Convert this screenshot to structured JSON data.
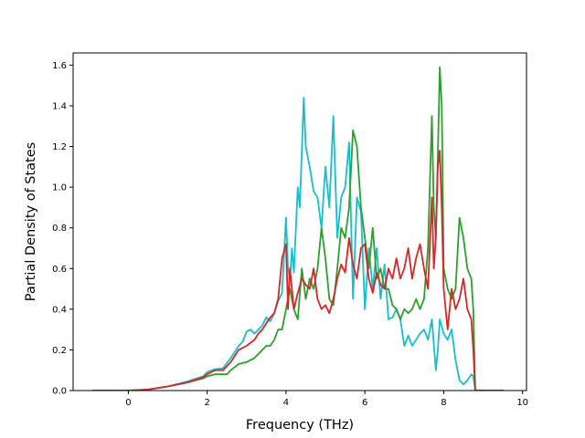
{
  "chart_data": {
    "type": "line",
    "title": "",
    "xlabel": "Frequency (THz)",
    "ylabel": "Partial Density of States",
    "xlim": [
      -1.4,
      10.1
    ],
    "ylim": [
      0.0,
      1.66
    ],
    "xticks": [
      0,
      2,
      4,
      6,
      8,
      10
    ],
    "yticks": [
      0.0,
      0.2,
      0.4,
      0.6,
      0.8,
      1.0,
      1.2,
      1.4,
      1.6
    ],
    "xtick_labels": [
      "0",
      "2",
      "4",
      "6",
      "8",
      "10"
    ],
    "ytick_labels": [
      "0.0",
      "0.2",
      "0.4",
      "0.6",
      "0.8",
      "1.0",
      "1.2",
      "1.4",
      "1.6"
    ],
    "grid": false,
    "legend": "none",
    "series": [
      {
        "color": "#17becf",
        "points": [
          [
            -0.9,
            0.0
          ],
          [
            0.0,
            0.0
          ],
          [
            0.5,
            0.005
          ],
          [
            1.0,
            0.02
          ],
          [
            1.5,
            0.045
          ],
          [
            1.9,
            0.07
          ],
          [
            2.0,
            0.09
          ],
          [
            2.2,
            0.105
          ],
          [
            2.4,
            0.11
          ],
          [
            2.6,
            0.16
          ],
          [
            2.8,
            0.22
          ],
          [
            2.9,
            0.24
          ],
          [
            3.0,
            0.29
          ],
          [
            3.1,
            0.3
          ],
          [
            3.2,
            0.28
          ],
          [
            3.3,
            0.3
          ],
          [
            3.4,
            0.32
          ],
          [
            3.5,
            0.36
          ],
          [
            3.6,
            0.34
          ],
          [
            3.7,
            0.38
          ],
          [
            3.8,
            0.44
          ],
          [
            3.9,
            0.48
          ],
          [
            4.0,
            0.85
          ],
          [
            4.05,
            0.6
          ],
          [
            4.1,
            0.55
          ],
          [
            4.15,
            0.7
          ],
          [
            4.2,
            0.58
          ],
          [
            4.3,
            1.0
          ],
          [
            4.35,
            0.9
          ],
          [
            4.45,
            1.44
          ],
          [
            4.5,
            1.2
          ],
          [
            4.6,
            1.1
          ],
          [
            4.7,
            0.98
          ],
          [
            4.8,
            0.95
          ],
          [
            4.9,
            0.8
          ],
          [
            5.0,
            1.1
          ],
          [
            5.1,
            0.9
          ],
          [
            5.2,
            1.35
          ],
          [
            5.3,
            0.75
          ],
          [
            5.4,
            0.95
          ],
          [
            5.5,
            1.0
          ],
          [
            5.6,
            1.22
          ],
          [
            5.7,
            0.45
          ],
          [
            5.8,
            0.95
          ],
          [
            5.9,
            0.88
          ],
          [
            6.0,
            0.4
          ],
          [
            6.1,
            0.7
          ],
          [
            6.2,
            0.5
          ],
          [
            6.3,
            0.7
          ],
          [
            6.4,
            0.45
          ],
          [
            6.5,
            0.62
          ],
          [
            6.6,
            0.35
          ],
          [
            6.7,
            0.36
          ],
          [
            6.8,
            0.4
          ],
          [
            6.9,
            0.35
          ],
          [
            7.0,
            0.22
          ],
          [
            7.1,
            0.27
          ],
          [
            7.2,
            0.22
          ],
          [
            7.3,
            0.25
          ],
          [
            7.4,
            0.28
          ],
          [
            7.5,
            0.3
          ],
          [
            7.6,
            0.25
          ],
          [
            7.7,
            0.35
          ],
          [
            7.8,
            0.1
          ],
          [
            7.85,
            0.2
          ],
          [
            7.9,
            0.35
          ],
          [
            8.0,
            0.28
          ],
          [
            8.1,
            0.25
          ],
          [
            8.2,
            0.3
          ],
          [
            8.3,
            0.15
          ],
          [
            8.4,
            0.05
          ],
          [
            8.5,
            0.03
          ],
          [
            8.6,
            0.05
          ],
          [
            8.7,
            0.08
          ],
          [
            8.75,
            0.07
          ],
          [
            8.8,
            0.0
          ],
          [
            9.5,
            0.0
          ]
        ]
      },
      {
        "color": "#2ca02c",
        "points": [
          [
            -0.9,
            0.0
          ],
          [
            0.0,
            0.0
          ],
          [
            0.5,
            0.005
          ],
          [
            1.0,
            0.02
          ],
          [
            1.5,
            0.04
          ],
          [
            1.9,
            0.06
          ],
          [
            2.0,
            0.07
          ],
          [
            2.2,
            0.08
          ],
          [
            2.5,
            0.08
          ],
          [
            2.6,
            0.1
          ],
          [
            2.8,
            0.13
          ],
          [
            3.0,
            0.14
          ],
          [
            3.2,
            0.16
          ],
          [
            3.4,
            0.2
          ],
          [
            3.5,
            0.22
          ],
          [
            3.6,
            0.22
          ],
          [
            3.7,
            0.25
          ],
          [
            3.8,
            0.3
          ],
          [
            3.9,
            0.3
          ],
          [
            4.0,
            0.4
          ],
          [
            4.1,
            0.5
          ],
          [
            4.2,
            0.4
          ],
          [
            4.3,
            0.35
          ],
          [
            4.4,
            0.6
          ],
          [
            4.5,
            0.45
          ],
          [
            4.6,
            0.55
          ],
          [
            4.7,
            0.5
          ],
          [
            4.8,
            0.6
          ],
          [
            4.9,
            0.8
          ],
          [
            5.0,
            0.65
          ],
          [
            5.1,
            0.45
          ],
          [
            5.2,
            0.42
          ],
          [
            5.3,
            0.6
          ],
          [
            5.4,
            0.8
          ],
          [
            5.5,
            0.75
          ],
          [
            5.6,
            0.9
          ],
          [
            5.7,
            1.28
          ],
          [
            5.8,
            1.2
          ],
          [
            5.9,
            0.9
          ],
          [
            6.0,
            0.75
          ],
          [
            6.1,
            0.6
          ],
          [
            6.2,
            0.8
          ],
          [
            6.3,
            0.55
          ],
          [
            6.4,
            0.6
          ],
          [
            6.5,
            0.5
          ],
          [
            6.6,
            0.5
          ],
          [
            6.7,
            0.42
          ],
          [
            6.8,
            0.4
          ],
          [
            6.9,
            0.35
          ],
          [
            7.0,
            0.4
          ],
          [
            7.1,
            0.38
          ],
          [
            7.2,
            0.4
          ],
          [
            7.3,
            0.45
          ],
          [
            7.4,
            0.4
          ],
          [
            7.5,
            0.45
          ],
          [
            7.6,
            0.7
          ],
          [
            7.7,
            1.35
          ],
          [
            7.75,
            0.9
          ],
          [
            7.8,
            0.75
          ],
          [
            7.85,
            1.15
          ],
          [
            7.9,
            1.59
          ],
          [
            7.95,
            1.4
          ],
          [
            8.0,
            0.6
          ],
          [
            8.1,
            0.5
          ],
          [
            8.2,
            0.45
          ],
          [
            8.3,
            0.5
          ],
          [
            8.4,
            0.85
          ],
          [
            8.5,
            0.75
          ],
          [
            8.6,
            0.6
          ],
          [
            8.7,
            0.55
          ],
          [
            8.75,
            0.4
          ],
          [
            8.8,
            0.0
          ],
          [
            9.5,
            0.0
          ]
        ]
      },
      {
        "color": "#d62728",
        "points": [
          [
            -0.9,
            0.0
          ],
          [
            0.0,
            0.0
          ],
          [
            0.5,
            0.005
          ],
          [
            1.0,
            0.02
          ],
          [
            1.5,
            0.04
          ],
          [
            1.9,
            0.065
          ],
          [
            2.0,
            0.08
          ],
          [
            2.2,
            0.1
          ],
          [
            2.4,
            0.1
          ],
          [
            2.6,
            0.14
          ],
          [
            2.8,
            0.2
          ],
          [
            3.0,
            0.22
          ],
          [
            3.2,
            0.25
          ],
          [
            3.3,
            0.28
          ],
          [
            3.4,
            0.3
          ],
          [
            3.5,
            0.33
          ],
          [
            3.6,
            0.36
          ],
          [
            3.7,
            0.38
          ],
          [
            3.8,
            0.45
          ],
          [
            3.9,
            0.65
          ],
          [
            4.0,
            0.72
          ],
          [
            4.05,
            0.4
          ],
          [
            4.1,
            0.6
          ],
          [
            4.2,
            0.4
          ],
          [
            4.3,
            0.48
          ],
          [
            4.4,
            0.55
          ],
          [
            4.5,
            0.52
          ],
          [
            4.6,
            0.5
          ],
          [
            4.7,
            0.6
          ],
          [
            4.8,
            0.45
          ],
          [
            4.9,
            0.4
          ],
          [
            5.0,
            0.42
          ],
          [
            5.1,
            0.38
          ],
          [
            5.2,
            0.45
          ],
          [
            5.3,
            0.55
          ],
          [
            5.4,
            0.62
          ],
          [
            5.5,
            0.58
          ],
          [
            5.6,
            0.75
          ],
          [
            5.7,
            0.62
          ],
          [
            5.8,
            0.55
          ],
          [
            5.9,
            0.7
          ],
          [
            6.0,
            0.72
          ],
          [
            6.1,
            0.55
          ],
          [
            6.2,
            0.48
          ],
          [
            6.3,
            0.58
          ],
          [
            6.4,
            0.52
          ],
          [
            6.5,
            0.5
          ],
          [
            6.6,
            0.6
          ],
          [
            6.7,
            0.55
          ],
          [
            6.8,
            0.65
          ],
          [
            6.9,
            0.55
          ],
          [
            7.0,
            0.6
          ],
          [
            7.1,
            0.7
          ],
          [
            7.2,
            0.55
          ],
          [
            7.3,
            0.65
          ],
          [
            7.4,
            0.72
          ],
          [
            7.5,
            0.6
          ],
          [
            7.6,
            0.5
          ],
          [
            7.7,
            0.95
          ],
          [
            7.75,
            0.6
          ],
          [
            7.8,
            0.75
          ],
          [
            7.85,
            1.1
          ],
          [
            7.9,
            1.18
          ],
          [
            7.95,
            0.9
          ],
          [
            8.0,
            0.5
          ],
          [
            8.1,
            0.3
          ],
          [
            8.2,
            0.5
          ],
          [
            8.3,
            0.4
          ],
          [
            8.4,
            0.45
          ],
          [
            8.5,
            0.55
          ],
          [
            8.6,
            0.4
          ],
          [
            8.7,
            0.35
          ],
          [
            8.75,
            0.2
          ],
          [
            8.8,
            0.0
          ],
          [
            9.5,
            0.0
          ]
        ]
      }
    ]
  }
}
